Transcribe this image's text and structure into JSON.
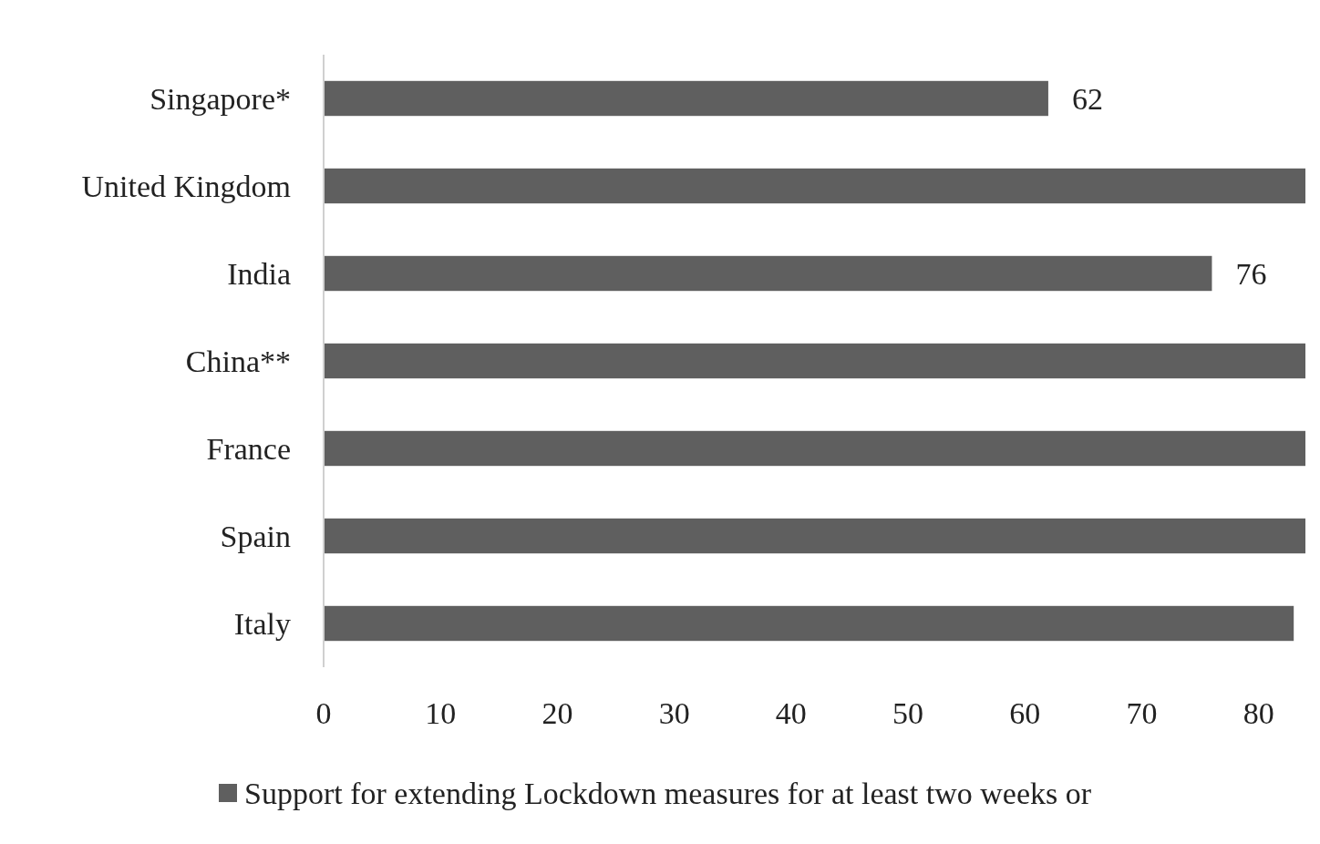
{
  "chart_data": {
    "type": "bar",
    "orientation": "horizontal",
    "categories": [
      "Singapore*",
      "United Kingdom",
      "India",
      "China**",
      "France",
      "Spain",
      "Italy"
    ],
    "series": [
      {
        "name": "Support for extending Lockdown measures for at least two weeks or",
        "color": "#5f5f5f",
        "values": [
          62,
          84,
          76,
          84,
          84,
          84,
          83
        ],
        "value_labels": [
          "62",
          null,
          "76",
          null,
          null,
          null,
          null
        ]
      }
    ],
    "xlim": [
      0,
      84
    ],
    "xticks": [
      0,
      10,
      20,
      30,
      40,
      50,
      60,
      70,
      80
    ],
    "grid": false,
    "legend": "bottom"
  }
}
